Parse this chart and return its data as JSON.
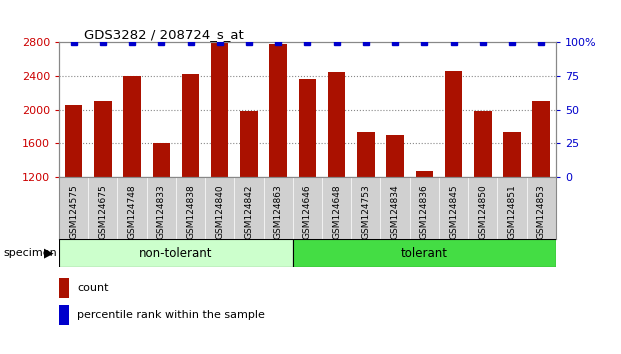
{
  "title": "GDS3282 / 208724_s_at",
  "categories": [
    "GSM124575",
    "GSM124675",
    "GSM124748",
    "GSM124833",
    "GSM124838",
    "GSM124840",
    "GSM124842",
    "GSM124863",
    "GSM124646",
    "GSM124648",
    "GSM124753",
    "GSM124834",
    "GSM124836",
    "GSM124845",
    "GSM124850",
    "GSM124851",
    "GSM124853"
  ],
  "counts": [
    2060,
    2100,
    2400,
    1605,
    2430,
    2800,
    1980,
    2780,
    2360,
    2445,
    1730,
    1695,
    1270,
    2465,
    1980,
    1730,
    2100
  ],
  "percentile_ranks": [
    100,
    100,
    100,
    100,
    100,
    100,
    100,
    100,
    100,
    100,
    100,
    100,
    100,
    100,
    100,
    100,
    100
  ],
  "groups": [
    {
      "label": "non-tolerant",
      "start": 0,
      "end": 7,
      "color": "#ccffcc"
    },
    {
      "label": "tolerant",
      "start": 8,
      "end": 16,
      "color": "#44dd44"
    }
  ],
  "bar_color": "#aa1100",
  "percentile_color": "#0000cc",
  "ylim_left": [
    1200,
    2800
  ],
  "ylim_right": [
    0,
    100
  ],
  "yticks_left": [
    1200,
    1600,
    2000,
    2400,
    2800
  ],
  "yticks_right": [
    0,
    25,
    50,
    75,
    100
  ],
  "grid_dotted_at": [
    1600,
    2000,
    2400
  ],
  "non_tol_count": 8,
  "tol_count": 9,
  "legend_count_label": "count",
  "legend_percentile_label": "percentile rank within the sample",
  "specimen_label": "specimen",
  "xtick_bg_color": "#d0d0d0",
  "spine_color": "#888888"
}
